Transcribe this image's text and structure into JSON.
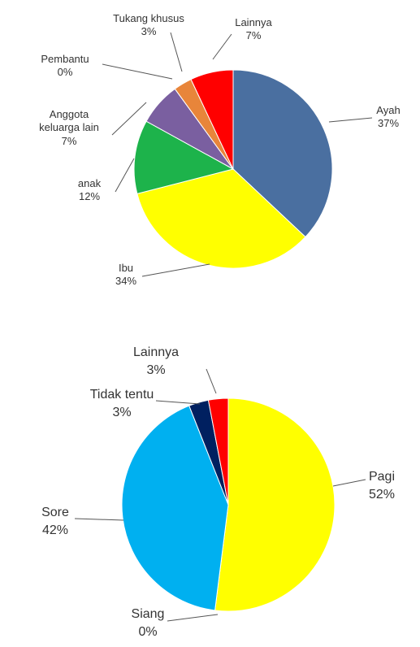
{
  "chart_data": [
    {
      "type": "pie",
      "categories": [
        "Ayah",
        "Ibu",
        "anak",
        "Anggota keluarga lain",
        "Pembantu",
        "Tukang khusus",
        "Lainnya"
      ],
      "values": [
        37,
        34,
        12,
        7,
        0,
        3,
        7
      ],
      "value_labels": [
        "37%",
        "34%",
        "12%",
        "7%",
        "0%",
        "3%",
        "7%"
      ],
      "colors": [
        "#4a6fa0",
        "#ffff00",
        "#1db34b",
        "#7a5fa0",
        "#c0504d",
        "#e8853a",
        "#ff0000"
      ]
    },
    {
      "type": "pie",
      "categories": [
        "Pagi",
        "Siang",
        "Sore",
        "Tidak tentu",
        "Lainnya"
      ],
      "values": [
        52,
        0,
        42,
        3,
        3
      ],
      "value_labels": [
        "52%",
        "0%",
        "42%",
        "3%",
        "3%"
      ],
      "colors": [
        "#ffff00",
        "#92d050",
        "#00b0f0",
        "#002060",
        "#ff0000"
      ]
    }
  ]
}
